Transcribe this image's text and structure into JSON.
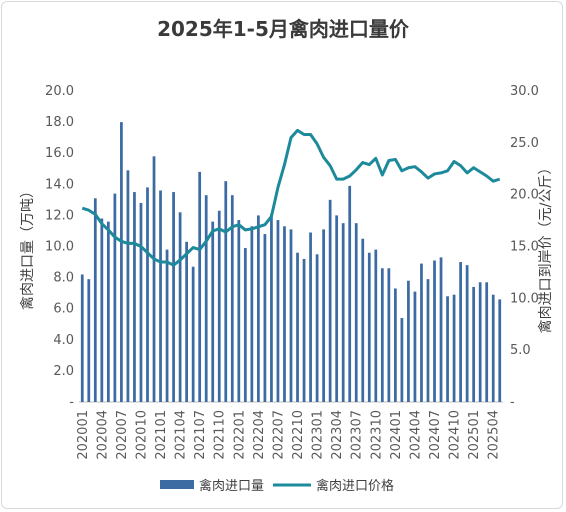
{
  "chart_data": {
    "type": "bar+line",
    "title": "2025年1-5月禽肉进口量价",
    "left_axis": {
      "label": "禽肉进口量（万吨）",
      "ylim": [
        0,
        20
      ],
      "ticks": [
        "-",
        "2.0",
        "4.0",
        "6.0",
        "8.0",
        "10.0",
        "12.0",
        "14.0",
        "16.0",
        "18.0",
        "20.0"
      ]
    },
    "right_axis": {
      "label": "禽肉进口到岸价（元/公斤）",
      "ylim": [
        0,
        30
      ],
      "ticks": [
        "-",
        "5.0",
        "10.0",
        "15.0",
        "20.0",
        "25.0",
        "30.0"
      ]
    },
    "x_tick_labels": [
      "202001",
      "202004",
      "202007",
      "202010",
      "202101",
      "202104",
      "202107",
      "202110",
      "202201",
      "202204",
      "202207",
      "202210",
      "202301",
      "202304",
      "202307",
      "202310",
      "202401",
      "202404",
      "202407",
      "202410",
      "202501",
      "202504"
    ],
    "categories": [
      "202001",
      "202002",
      "202003",
      "202004",
      "202005",
      "202006",
      "202007",
      "202008",
      "202009",
      "202010",
      "202011",
      "202012",
      "202101",
      "202102",
      "202103",
      "202104",
      "202105",
      "202106",
      "202107",
      "202108",
      "202109",
      "202110",
      "202111",
      "202112",
      "202201",
      "202202",
      "202203",
      "202204",
      "202205",
      "202206",
      "202207",
      "202208",
      "202209",
      "202210",
      "202211",
      "202212",
      "202301",
      "202302",
      "202303",
      "202304",
      "202305",
      "202306",
      "202307",
      "202308",
      "202309",
      "202310",
      "202311",
      "202312",
      "202401",
      "202402",
      "202403",
      "202404",
      "202405",
      "202406",
      "202407",
      "202408",
      "202409",
      "202410",
      "202411",
      "202412",
      "202501",
      "202502",
      "202503",
      "202504",
      "202505"
    ],
    "series": [
      {
        "name": "禽肉进口量",
        "type": "bar",
        "axis": "left",
        "color": "#3c6aa2",
        "values": [
          8.2,
          7.9,
          13.1,
          11.8,
          11.6,
          13.4,
          18.0,
          14.9,
          13.5,
          12.8,
          13.8,
          15.8,
          13.6,
          9.8,
          13.5,
          12.2,
          10.3,
          8.7,
          14.8,
          13.3,
          11.6,
          12.3,
          14.2,
          13.3,
          11.7,
          9.9,
          11.3,
          12.0,
          10.8,
          12.1,
          11.7,
          11.3,
          11.1,
          9.6,
          9.2,
          10.9,
          9.5,
          11.1,
          13.0,
          12.0,
          11.5,
          13.9,
          11.5,
          10.5,
          9.6,
          9.8,
          8.6,
          8.6,
          7.3,
          5.4,
          7.8,
          7.1,
          8.9,
          7.9,
          9.1,
          9.3,
          6.8,
          6.9,
          9.0,
          8.8,
          7.4,
          7.7,
          7.7,
          6.9,
          6.6
        ]
      },
      {
        "name": "禽肉进口价格",
        "type": "line",
        "axis": "right",
        "color": "#1d8a9c",
        "values": [
          18.7,
          18.5,
          18.1,
          17.2,
          16.6,
          15.9,
          15.5,
          15.3,
          15.3,
          15.0,
          14.4,
          13.8,
          13.5,
          13.5,
          13.2,
          13.7,
          14.3,
          14.9,
          14.7,
          15.5,
          16.5,
          16.7,
          16.4,
          16.9,
          17.1,
          16.6,
          16.7,
          16.9,
          17.1,
          17.9,
          20.7,
          22.9,
          25.5,
          26.2,
          25.8,
          25.8,
          24.9,
          23.6,
          22.8,
          21.5,
          21.5,
          21.8,
          22.4,
          23.1,
          22.9,
          23.5,
          21.9,
          23.3,
          23.4,
          22.3,
          22.6,
          22.7,
          22.2,
          21.6,
          22.0,
          22.1,
          22.3,
          23.2,
          22.8,
          22.1,
          22.6,
          22.2,
          21.8,
          21.3,
          21.5
        ]
      }
    ],
    "legend": {
      "position": "bottom"
    },
    "grid": false
  }
}
